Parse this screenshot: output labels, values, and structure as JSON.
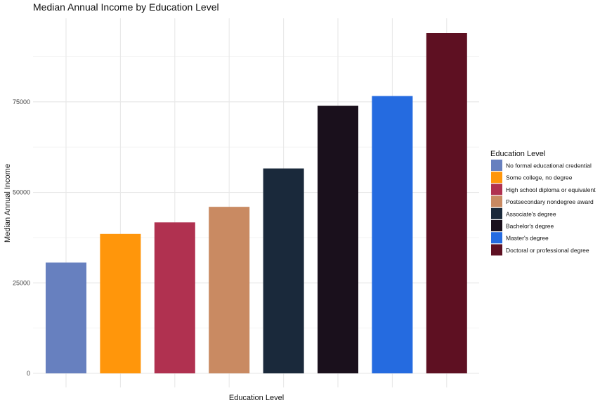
{
  "chart_data": {
    "type": "bar",
    "title": "Median Annual Income by Education Level",
    "xlabel": "Education Level",
    "ylabel": "Median Annual Income",
    "ylim": [
      0,
      94000
    ],
    "yticks": [
      0,
      25000,
      50000,
      75000
    ],
    "grid": true,
    "legend": {
      "title": "Education Level",
      "position": "right"
    },
    "categories": [
      "No formal educational credential",
      "Some college, no degree",
      "High school diploma or equivalent",
      "Postsecondary nondegree award",
      "Associate's degree",
      "Bachelor's degree",
      "Master's degree",
      "Doctoral or professional degree"
    ],
    "values": [
      30600,
      38500,
      41700,
      46000,
      56600,
      73900,
      76600,
      94000
    ],
    "colors": [
      "#6780BF",
      "#FF960B",
      "#B03150",
      "#C98A62",
      "#1A293B",
      "#1A101C",
      "#256BE0",
      "#5E1022"
    ]
  }
}
